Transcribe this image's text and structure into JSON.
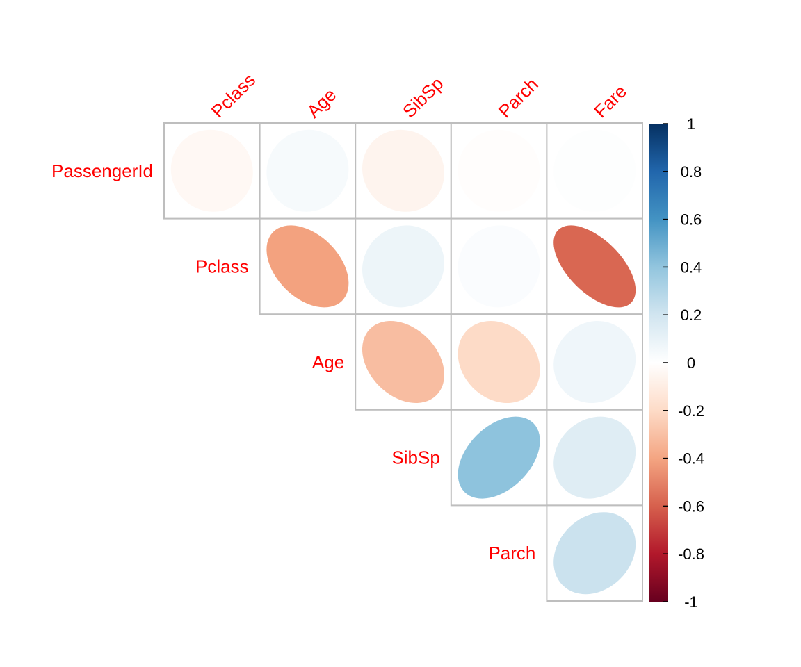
{
  "chart_data": {
    "type": "heatmap",
    "title": "",
    "row_labels": [
      "PassengerId",
      "Pclass",
      "Age",
      "SibSp",
      "Parch"
    ],
    "col_labels": [
      "Pclass",
      "Age",
      "SibSp",
      "Parch",
      "Fare"
    ],
    "layout": "upper-triangle",
    "cells": [
      {
        "row": "PassengerId",
        "col": "Pclass",
        "value": -0.04
      },
      {
        "row": "PassengerId",
        "col": "Age",
        "value": 0.04
      },
      {
        "row": "PassengerId",
        "col": "SibSp",
        "value": -0.06
      },
      {
        "row": "PassengerId",
        "col": "Parch",
        "value": -0.01
      },
      {
        "row": "PassengerId",
        "col": "Fare",
        "value": 0.01
      },
      {
        "row": "Pclass",
        "col": "Age",
        "value": -0.41
      },
      {
        "row": "Pclass",
        "col": "SibSp",
        "value": 0.08
      },
      {
        "row": "Pclass",
        "col": "Parch",
        "value": 0.02
      },
      {
        "row": "Pclass",
        "col": "Fare",
        "value": -0.58
      },
      {
        "row": "Age",
        "col": "SibSp",
        "value": -0.31
      },
      {
        "row": "Age",
        "col": "Parch",
        "value": -0.2
      },
      {
        "row": "Age",
        "col": "Fare",
        "value": 0.07
      },
      {
        "row": "SibSp",
        "col": "Parch",
        "value": 0.41
      },
      {
        "row": "SibSp",
        "col": "Fare",
        "value": 0.14
      },
      {
        "row": "Parch",
        "col": "Fare",
        "value": 0.22
      }
    ],
    "colorbar": {
      "range": [
        -1,
        1
      ],
      "ticks": [
        "1",
        "0.8",
        "0.6",
        "0.4",
        "0.2",
        "0",
        "-0.2",
        "-0.4",
        "-0.6",
        "-0.8",
        "-1"
      ],
      "placement": "right"
    },
    "colors": {
      "label": "#ff0000",
      "grid": "#bebebe",
      "scale": [
        "#67001f",
        "#b2182b",
        "#d6604d",
        "#f4a582",
        "#fddbc7",
        "#ffffff",
        "#d1e5f0",
        "#92c5de",
        "#4393c3",
        "#2166ac",
        "#053061"
      ]
    }
  }
}
